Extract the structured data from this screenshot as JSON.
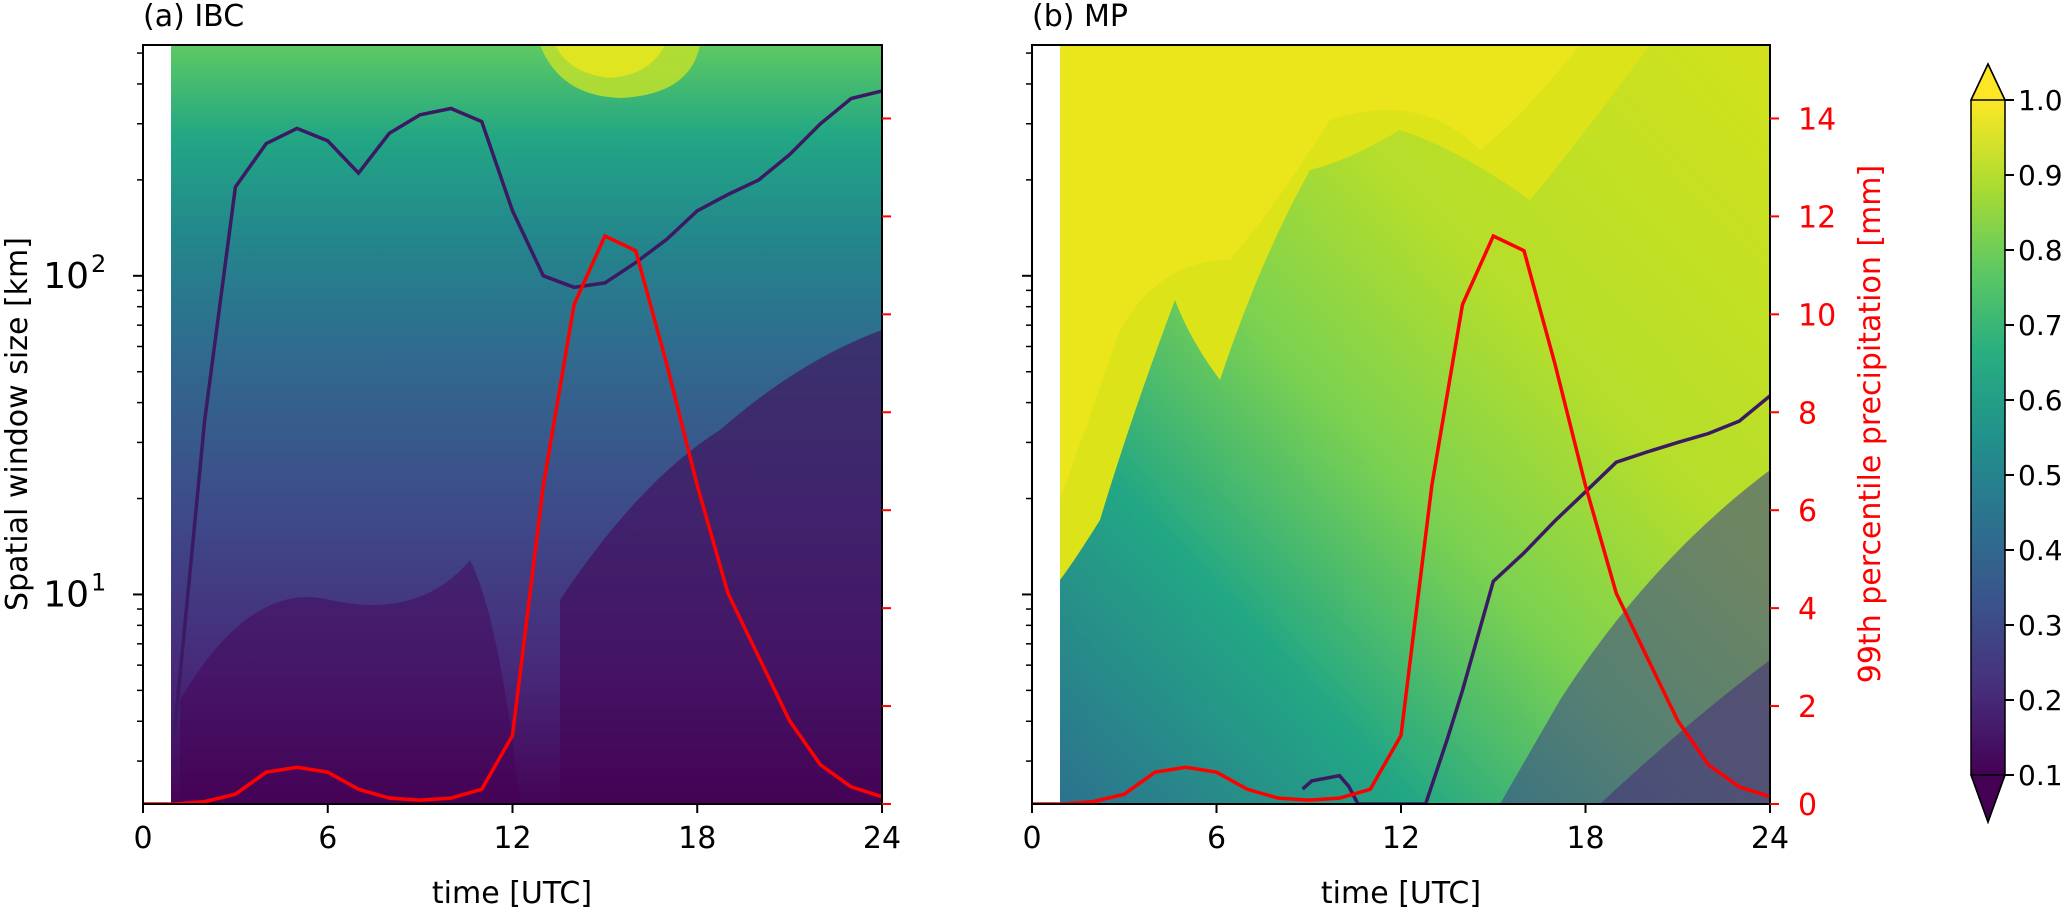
{
  "chart_data": [
    {
      "type": "heatmap",
      "title": "(a) IBC",
      "xlabel": "time [UTC]",
      "ylabel": "Spatial window size [km]",
      "y2label": "99th percentile precipitation [mm]",
      "x_ticks": [
        "0",
        "6",
        "12",
        "18",
        "24"
      ],
      "xlim": [
        0,
        24
      ],
      "y_ticks": [
        "10^1",
        "10^2"
      ],
      "ylim_km": [
        2.2,
        530
      ],
      "y_scale": "log",
      "y2_ticks": [],
      "y2lim": [
        0,
        15.5
      ],
      "contour_line_color": "#3b1a63",
      "contour_threshold_km": [
        [
          1,
          3.5
        ],
        [
          2,
          35
        ],
        [
          3,
          190
        ],
        [
          4,
          260
        ],
        [
          5,
          290
        ],
        [
          6,
          265
        ],
        [
          7,
          210
        ],
        [
          8,
          280
        ],
        [
          9,
          320
        ],
        [
          10,
          335
        ],
        [
          11,
          305
        ],
        [
          12,
          160
        ],
        [
          13,
          100
        ],
        [
          14,
          92
        ],
        [
          15,
          95
        ],
        [
          16,
          110
        ],
        [
          17,
          130
        ],
        [
          18,
          160
        ],
        [
          19,
          180
        ],
        [
          20,
          200
        ],
        [
          21,
          240
        ],
        [
          22,
          300
        ],
        [
          23,
          360
        ],
        [
          24,
          380
        ]
      ],
      "series": [
        {
          "color": "#ff0000",
          "x": [
            0,
            1,
            2,
            3,
            4,
            5,
            6,
            7,
            8,
            9,
            10,
            11,
            12,
            13,
            14,
            15,
            16,
            17,
            18,
            19,
            20,
            21,
            22,
            23,
            24
          ],
          "values": [
            0,
            0,
            0.05,
            0.2,
            0.65,
            0.75,
            0.65,
            0.3,
            0.12,
            0.08,
            0.12,
            0.3,
            1.4,
            6.5,
            10.2,
            11.6,
            11.3,
            9,
            6.5,
            4.3,
            3,
            1.7,
            0.8,
            0.35,
            0.15
          ]
        }
      ]
    },
    {
      "type": "heatmap",
      "title": "(b) MP",
      "xlabel": "time [UTC]",
      "ylabel": "",
      "y2label": "99th percentile precipitation [mm]",
      "x_ticks": [
        "0",
        "6",
        "12",
        "18",
        "24"
      ],
      "xlim": [
        0,
        24
      ],
      "y_scale": "log",
      "ylim_km": [
        2.2,
        530
      ],
      "y2_ticks": [
        "0",
        "2",
        "4",
        "6",
        "8",
        "10",
        "12",
        "14"
      ],
      "y2lim": [
        0,
        15.5
      ],
      "contour_line_color": "#3b1a63",
      "contour_threshold_km": [
        [
          8.8,
          2.45
        ],
        [
          9.1,
          2.6
        ],
        [
          10,
          2.7
        ],
        [
          10.3,
          2.5
        ],
        [
          10.6,
          2.2
        ],
        [
          12.8,
          2.2
        ],
        [
          13.5,
          3.5
        ],
        [
          14,
          5
        ],
        [
          15,
          11
        ],
        [
          16,
          13.5
        ],
        [
          17,
          17
        ],
        [
          18,
          21
        ],
        [
          19,
          26
        ],
        [
          20,
          28
        ],
        [
          21,
          30
        ],
        [
          22,
          32
        ],
        [
          23,
          35
        ],
        [
          24,
          42
        ]
      ],
      "series": [
        {
          "color": "#ff0000",
          "x": [
            0,
            1,
            2,
            3,
            4,
            5,
            6,
            7,
            8,
            9,
            10,
            11,
            12,
            13,
            14,
            15,
            16,
            17,
            18,
            19,
            20,
            21,
            22,
            23,
            24
          ],
          "values": [
            0,
            0,
            0.05,
            0.2,
            0.65,
            0.75,
            0.65,
            0.3,
            0.12,
            0.08,
            0.12,
            0.3,
            1.4,
            6.5,
            10.2,
            11.6,
            11.3,
            9,
            6.5,
            4.3,
            3,
            1.7,
            0.8,
            0.35,
            0.15
          ]
        }
      ]
    }
  ],
  "colorbar": {
    "ticks": [
      "0.1",
      "0.2",
      "0.3",
      "0.4",
      "0.5",
      "0.6",
      "0.7",
      "0.8",
      "0.9",
      "1.0"
    ],
    "colors": [
      "#440154",
      "#472d7b",
      "#3b528b",
      "#2c728e",
      "#21918c",
      "#28ae80",
      "#5ec962",
      "#addc30",
      "#fde725"
    ],
    "extend": "both"
  }
}
